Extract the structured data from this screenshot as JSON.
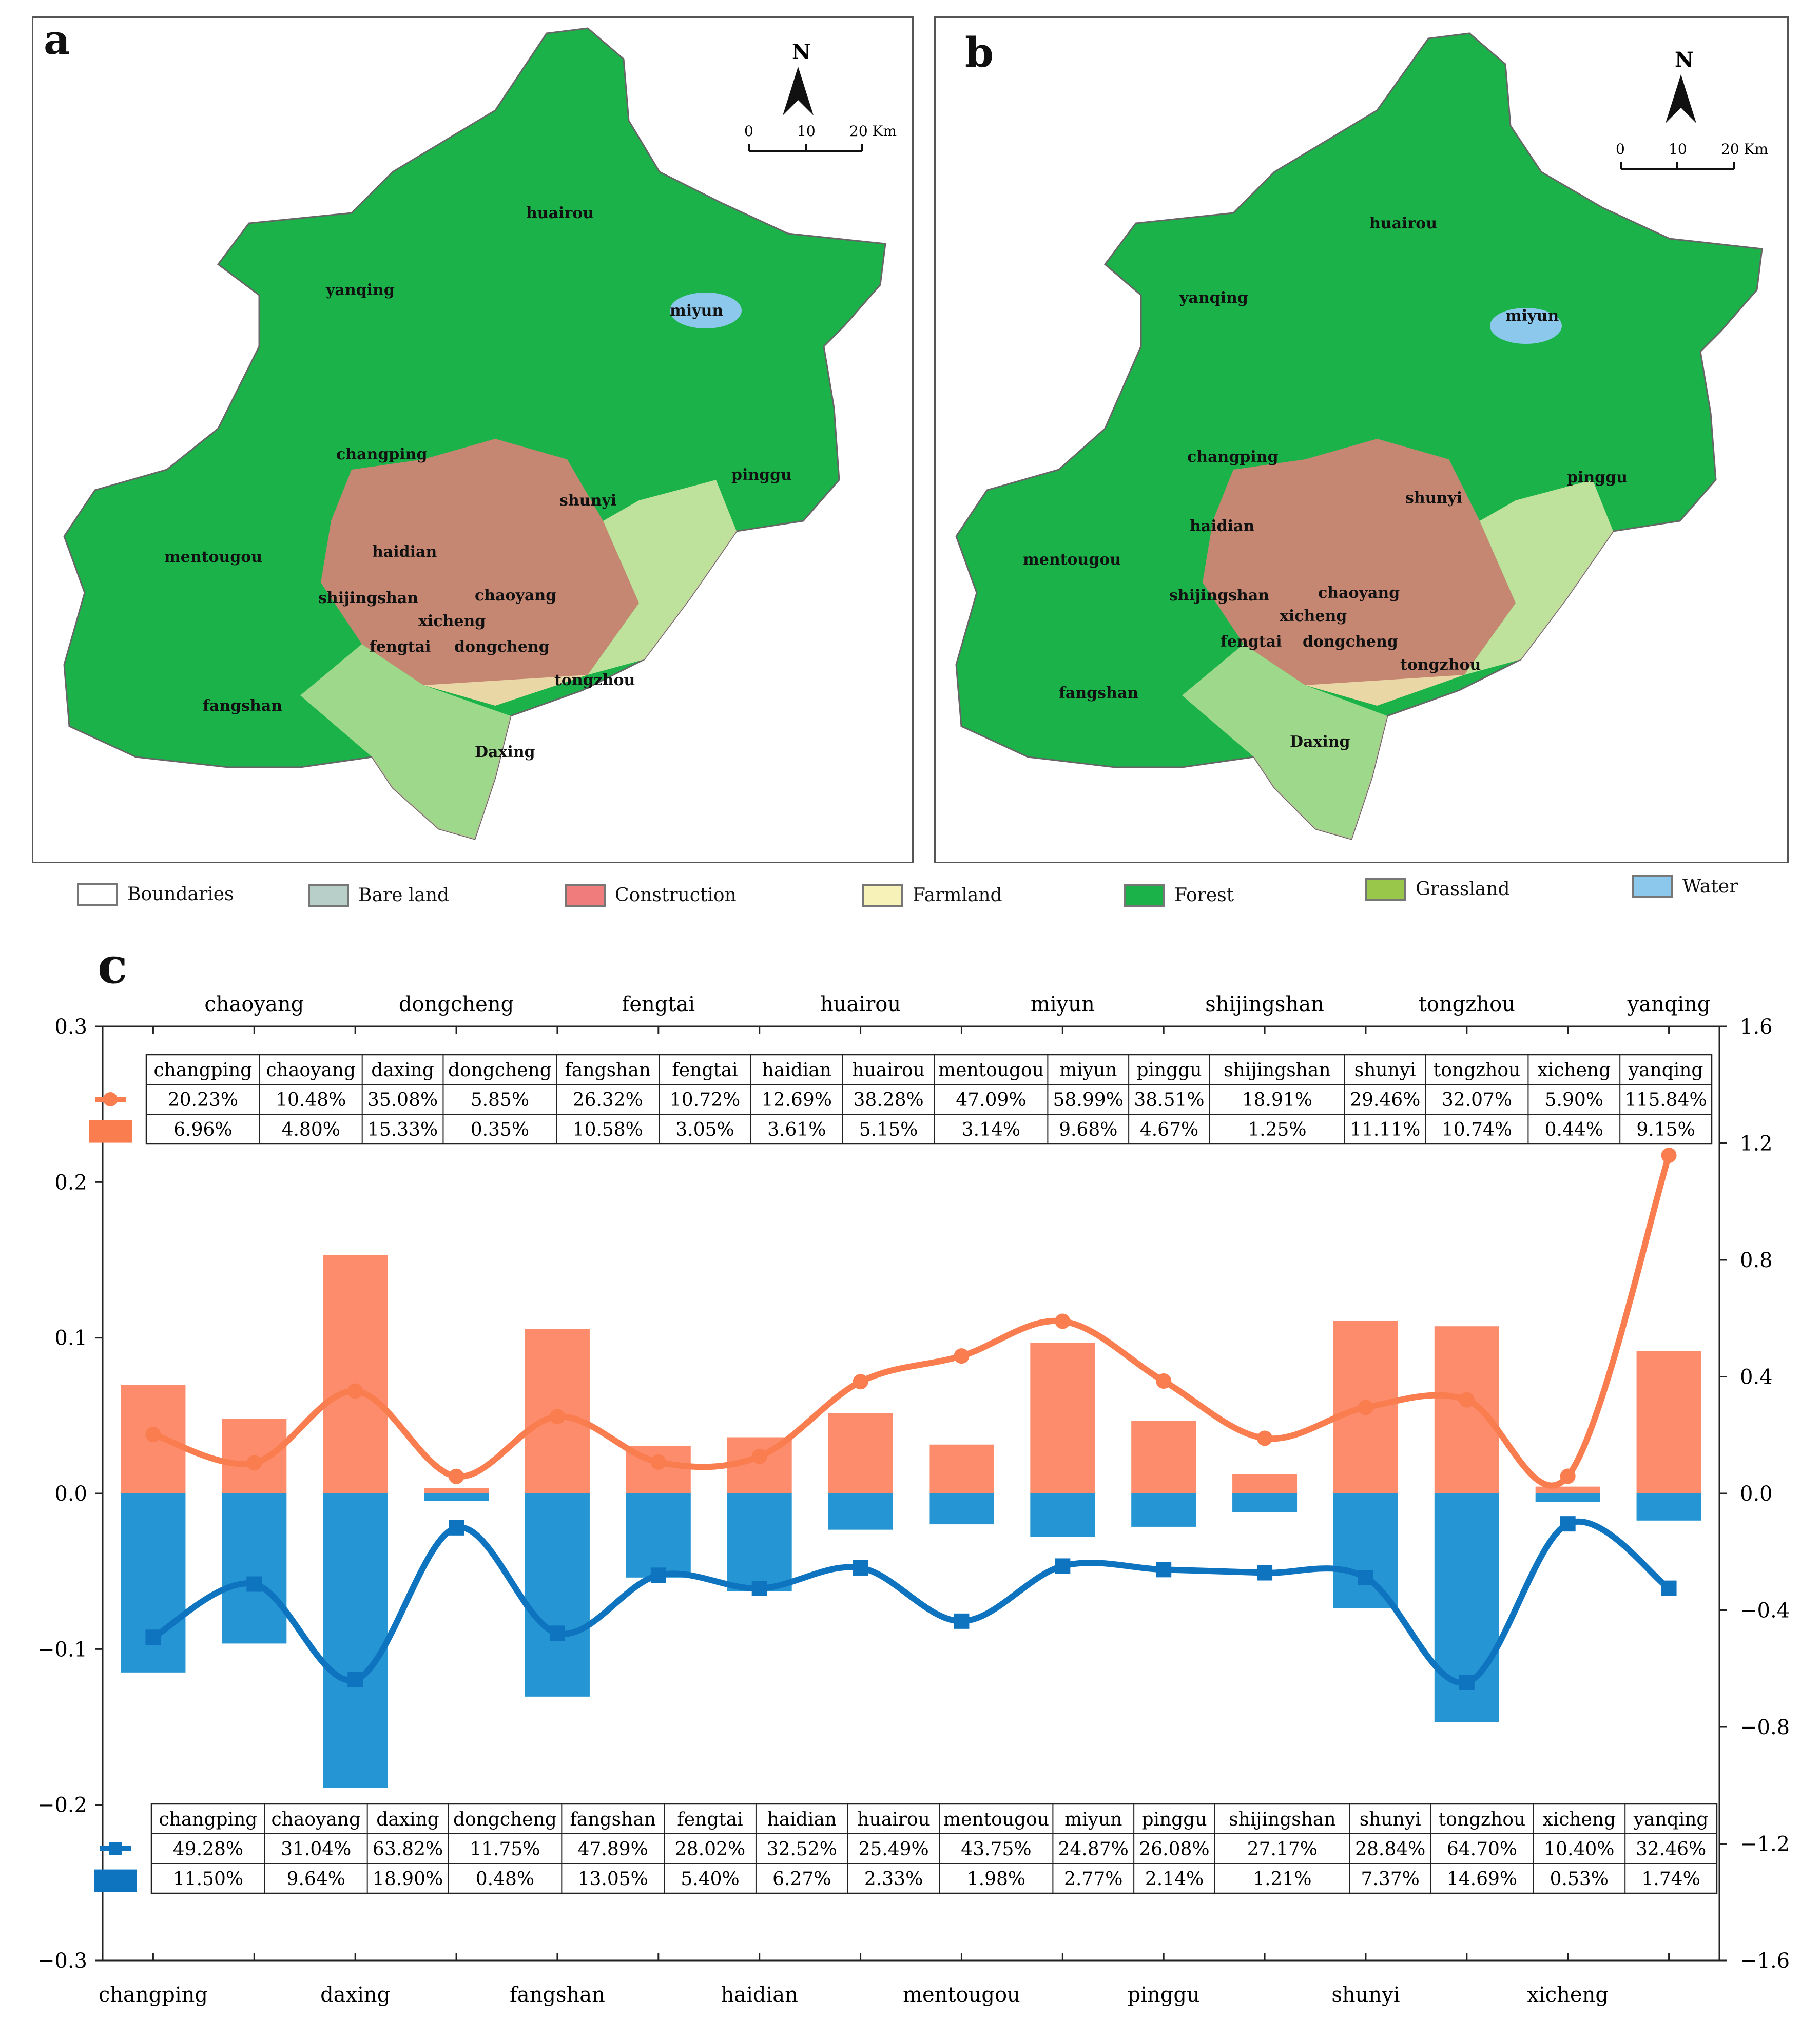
{
  "maps": {
    "a": {
      "label": "a",
      "compass_n": "N",
      "scale": [
        "0",
        "10",
        "20 Km"
      ],
      "districts": [
        "huairou",
        "yanqing",
        "miyun",
        "changping",
        "pinggu",
        "shunyi",
        "mentougou",
        "haidian",
        "shijingshan",
        "chaoyang",
        "xicheng",
        "fengtai",
        "dongcheng",
        "tongzhou",
        "fangshan",
        "Daxing"
      ]
    },
    "b": {
      "label": "b",
      "compass_n": "N",
      "scale": [
        "0",
        "10",
        "20 Km"
      ],
      "districts": [
        "huairou",
        "yanqing",
        "miyun",
        "changping",
        "pinggu",
        "shunyi",
        "haidian",
        "mentougou",
        "shijingshan",
        "chaoyang",
        "xicheng",
        "fengtai",
        "dongcheng",
        "tongzhou",
        "fangshan",
        "Daxing"
      ]
    }
  },
  "legend": [
    {
      "label": "Boundaries",
      "color": "#ffffff"
    },
    {
      "label": "Bare land",
      "color": "#b8cfc9"
    },
    {
      "label": "Construction",
      "color": "#f07c7c"
    },
    {
      "label": "Farmland",
      "color": "#f6f2b8"
    },
    {
      "label": "Forest",
      "color": "#1bb24a"
    },
    {
      "label": "Grassland",
      "color": "#99c74a"
    },
    {
      "label": "Water",
      "color": "#8cc8ec"
    }
  ],
  "colors": {
    "orange": "#f97d4e",
    "orange_bar": "#fc8c6c",
    "blue": "#0f74c0",
    "blue_bar": "#2596d3"
  },
  "chart_data": {
    "label": "c",
    "type": "bar",
    "categories": [
      "changping",
      "chaoyang",
      "daxing",
      "dongcheng",
      "fangshan",
      "fengtai",
      "haidian",
      "huairou",
      "mentougou",
      "miyun",
      "pinggu",
      "shijingshan",
      "shunyi",
      "tongzhou",
      "xicheng",
      "yanqing"
    ],
    "top_axis_labels": [
      "chaoyang",
      "dongcheng",
      "fengtai",
      "huairou",
      "miyun",
      "shijingshan",
      "tongzhou",
      "yanqing"
    ],
    "bottom_axis_labels": [
      "changping",
      "daxing",
      "fangshan",
      "haidian",
      "mentougou",
      "pinggu",
      "shunyi",
      "xicheng"
    ],
    "left_axis": {
      "ylim": [
        -0.3,
        0.3
      ],
      "ticks": [
        "0.3",
        "0.2",
        "0.1",
        "0.0",
        "−0.1",
        "−0.2",
        "−0.3"
      ]
    },
    "right_axis": {
      "ylim": [
        -1.6,
        1.6
      ],
      "ticks": [
        "1.6",
        "1.2",
        "0.8",
        "0.4",
        "0.0",
        "−0.4",
        "−0.8",
        "−1.2",
        "−1.6"
      ]
    },
    "series": [
      {
        "axis": "left",
        "type": "bar",
        "color": "#fc8c6c",
        "values": [
          0.0696,
          0.048,
          0.1533,
          0.0035,
          0.1058,
          0.0305,
          0.0361,
          0.0515,
          0.0314,
          0.0968,
          0.0467,
          0.0125,
          0.1111,
          0.1074,
          0.0044,
          0.0915
        ],
        "table_values": [
          "6.96%",
          "4.80%",
          "15.33%",
          "0.35%",
          "10.58%",
          "3.05%",
          "3.61%",
          "5.15%",
          "3.14%",
          "9.68%",
          "4.67%",
          "1.25%",
          "11.11%",
          "10.74%",
          "0.44%",
          "9.15%"
        ]
      },
      {
        "axis": "right",
        "type": "line",
        "color": "#f97d4e",
        "values": [
          0.2023,
          0.1048,
          0.3508,
          0.0585,
          0.2632,
          0.1072,
          0.1269,
          0.3828,
          0.4709,
          0.5899,
          0.3851,
          0.1891,
          0.2946,
          0.3207,
          0.059,
          1.1584
        ],
        "table_values": [
          "20.23%",
          "10.48%",
          "35.08%",
          "5.85%",
          "26.32%",
          "10.72%",
          "12.69%",
          "38.28%",
          "47.09%",
          "58.99%",
          "38.51%",
          "18.91%",
          "29.46%",
          "32.07%",
          "5.90%",
          "115.84%"
        ]
      },
      {
        "axis": "left",
        "type": "bar",
        "color": "#2596d3",
        "values": [
          -0.115,
          -0.0964,
          -0.189,
          -0.0048,
          -0.1305,
          -0.054,
          -0.0627,
          -0.0233,
          -0.0198,
          -0.0277,
          -0.0214,
          -0.0121,
          -0.0737,
          -0.1469,
          -0.0053,
          -0.0174
        ],
        "table_values": [
          "11.50%",
          "9.64%",
          "18.90%",
          "0.48%",
          "13.05%",
          "5.40%",
          "6.27%",
          "2.33%",
          "1.98%",
          "2.77%",
          "2.14%",
          "1.21%",
          "7.37%",
          "14.69%",
          "0.53%",
          "1.74%"
        ]
      },
      {
        "axis": "right",
        "type": "line",
        "color": "#0f74c0",
        "values": [
          -0.4928,
          -0.3104,
          -0.6382,
          -0.1175,
          -0.4789,
          -0.2802,
          -0.3252,
          -0.2549,
          -0.4375,
          -0.2487,
          -0.2608,
          -0.2717,
          -0.2884,
          -0.647,
          -0.104,
          -0.3246
        ],
        "table_values": [
          "49.28%",
          "31.04%",
          "63.82%",
          "11.75%",
          "47.89%",
          "28.02%",
          "32.52%",
          "25.49%",
          "43.75%",
          "24.87%",
          "26.08%",
          "27.17%",
          "28.84%",
          "64.70%",
          "10.40%",
          "32.46%"
        ]
      }
    ]
  }
}
